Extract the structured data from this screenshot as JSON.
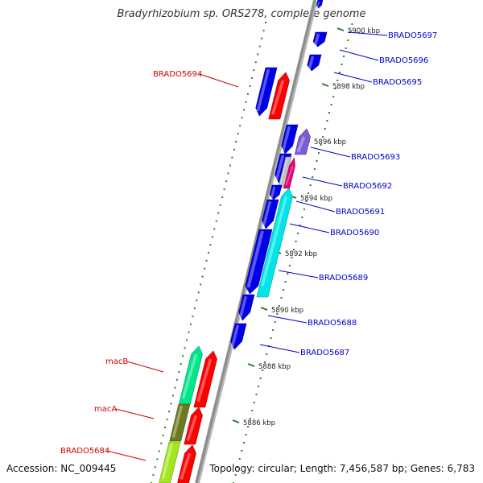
{
  "title": "Bradyrhizobium sp. ORS278, complete genome",
  "accession_text": "Accession: NC_009445",
  "topology_text": "Topology: circular; Length: 7,456,587 bp; Genes: 6,783",
  "colors": {
    "backbone": "#8c8c8c",
    "tick": "#2d7a2d",
    "label_right": "#0000c8",
    "label_left": "#d10000",
    "kbp_text": "#222222"
  },
  "ticks": [
    {
      "label": "5900 kbp"
    },
    {
      "label": "5898 kbp"
    },
    {
      "label": "5896 kbp"
    },
    {
      "label": "5894 kbp"
    },
    {
      "label": "5892 kbp"
    },
    {
      "label": "5890 kbp"
    },
    {
      "label": "5888 kbp"
    },
    {
      "label": "5886 kbp"
    }
  ],
  "features": [
    {
      "name": "BRADO5697",
      "color": "#0000e6"
    },
    {
      "name": "BRADO5696",
      "color": "#0000e6"
    },
    {
      "name": "BRADO5695",
      "color": "#0000e6"
    },
    {
      "name": "BRADO5694",
      "color": "#0000e6"
    },
    {
      "name": "BRADO5694-red",
      "color": "#ff0000"
    },
    {
      "name": "BRADO5693",
      "color": "#0000e6"
    },
    {
      "name": "BRADO5693-purple",
      "color": "#7a5cd6"
    },
    {
      "name": "BRADO5692",
      "color": "#0000e6"
    },
    {
      "name": "BRADO5692-grey",
      "color": "#c0c0c0"
    },
    {
      "name": "BRADO5692-pink",
      "color": "#e6007a"
    },
    {
      "name": "BRADO5691",
      "color": "#0000e6"
    },
    {
      "name": "BRADO5690",
      "color": "#0000e6"
    },
    {
      "name": "BRADO5690-cyan",
      "color": "#00e6e6"
    },
    {
      "name": "BRADO5689",
      "color": "#0000e6"
    },
    {
      "name": "BRADO5688",
      "color": "#0000e6"
    },
    {
      "name": "BRADO5687",
      "color": "#0000e6"
    },
    {
      "name": "macB",
      "color": "#00e68a"
    },
    {
      "name": "macA",
      "color": "#6b7a1f"
    },
    {
      "name": "BRADO5684",
      "color": "#a3e61f"
    },
    {
      "name": "red-1",
      "color": "#ff0000"
    },
    {
      "name": "red-2",
      "color": "#ff0000"
    },
    {
      "name": "red-3",
      "color": "#ff0000"
    }
  ],
  "labels": [
    {
      "text": "BRADO5697",
      "side": "right"
    },
    {
      "text": "BRADO5696",
      "side": "right"
    },
    {
      "text": "BRADO5695",
      "side": "right"
    },
    {
      "text": "BRADO5694",
      "side": "left"
    },
    {
      "text": "BRADO5693",
      "side": "right"
    },
    {
      "text": "BRADO5692",
      "side": "right"
    },
    {
      "text": "BRADO5691",
      "side": "right"
    },
    {
      "text": "BRADO5690",
      "side": "right"
    },
    {
      "text": "BRADO5689",
      "side": "right"
    },
    {
      "text": "BRADO5688",
      "side": "right"
    },
    {
      "text": "BRADO5687",
      "side": "right"
    },
    {
      "text": "macB",
      "side": "left"
    },
    {
      "text": "macA",
      "side": "left"
    },
    {
      "text": "BRADO5684",
      "side": "left"
    }
  ]
}
